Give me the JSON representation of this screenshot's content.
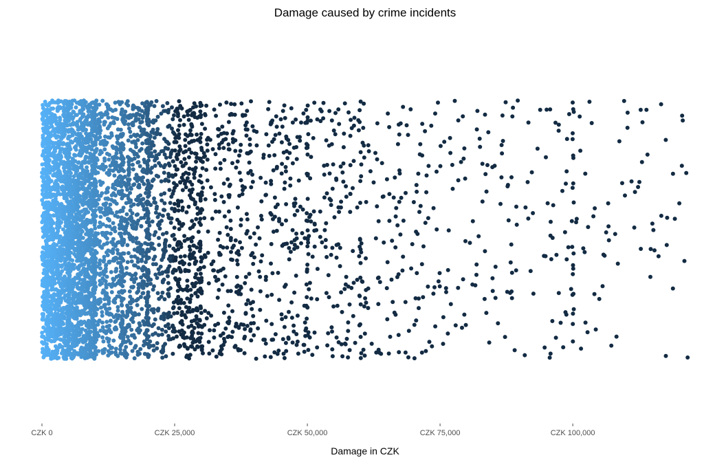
{
  "chart_data": {
    "type": "scatter",
    "title": "Damage caused by crime incidents",
    "xlabel": "Damage in CZK",
    "ylabel": "",
    "x_tick_values": [
      0,
      25000,
      50000,
      75000,
      100000
    ],
    "x_tick_labels": [
      "CZK 0",
      "CZK 25,000",
      "CZK 50,000",
      "CZK 75,000",
      "CZK 100,000"
    ],
    "xlim": [
      0,
      122000
    ],
    "ylim": [
      0,
      1
    ],
    "grid": false,
    "legend": "none",
    "jitter": "vertical",
    "color_scale": {
      "dark": "#132b43",
      "light": "#56b1f7",
      "mapped_to": "x"
    },
    "bands": [
      {
        "x_from": 0,
        "x_to": 10000,
        "count": 2200
      },
      {
        "x_from": 10000,
        "x_to": 20000,
        "count": 900
      },
      {
        "x_from": 20000,
        "x_to": 30000,
        "count": 600
      },
      {
        "x_from": 30000,
        "x_to": 40000,
        "count": 260
      },
      {
        "x_from": 40000,
        "x_to": 50000,
        "count": 180
      },
      {
        "x_from": 50000,
        "x_to": 60000,
        "count": 140
      },
      {
        "x_from": 60000,
        "x_to": 70000,
        "count": 90
      },
      {
        "x_from": 70000,
        "x_to": 80000,
        "count": 75
      },
      {
        "x_from": 80000,
        "x_to": 90000,
        "count": 55
      },
      {
        "x_from": 90000,
        "x_to": 100000,
        "count": 45
      },
      {
        "x_from": 100000,
        "x_to": 110000,
        "count": 35
      },
      {
        "x_from": 110000,
        "x_to": 122000,
        "count": 35
      }
    ],
    "stacked_values": [
      {
        "x": 1000,
        "count": 120
      },
      {
        "x": 5000,
        "count": 120
      },
      {
        "x": 10000,
        "count": 100
      },
      {
        "x": 15000,
        "count": 80
      },
      {
        "x": 20000,
        "count": 90
      },
      {
        "x": 30000,
        "count": 40
      },
      {
        "x": 50000,
        "count": 30
      },
      {
        "x": 60000,
        "count": 20
      },
      {
        "x": 100000,
        "count": 20
      }
    ]
  }
}
